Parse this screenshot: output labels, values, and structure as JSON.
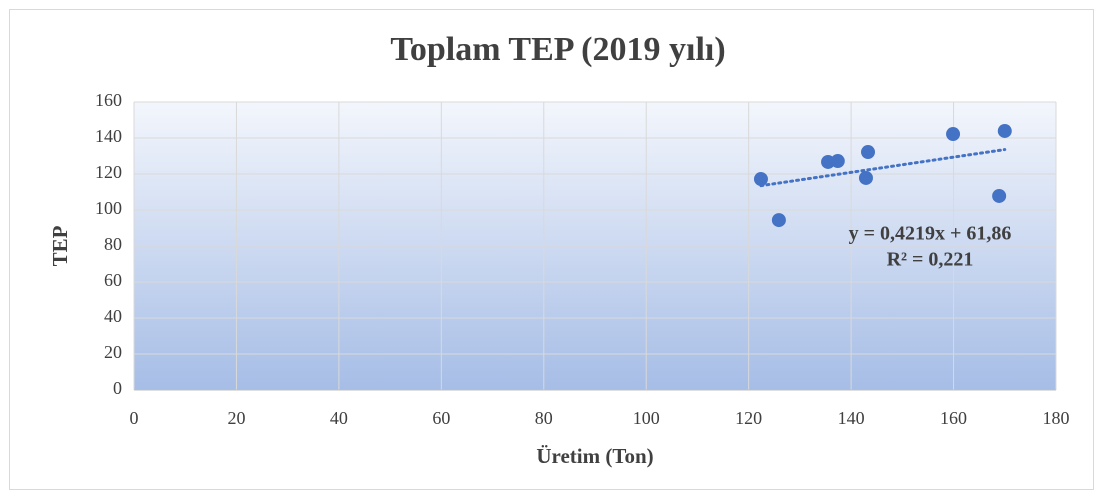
{
  "chart_data": {
    "type": "scatter",
    "title": "Toplam TEP (2019 yılı)",
    "x_label": "Üretim (Ton)",
    "y_label": "TEP",
    "series": [
      {
        "color": "#4472c4",
        "x": [
          122.4,
          125.9,
          135.5,
          137.4,
          143.3,
          142.9,
          159.9,
          170.0,
          168.9
        ],
        "values": [
          117.2,
          94.4,
          126.7,
          127.2,
          132.2,
          117.8,
          142.2,
          143.9,
          107.8
        ]
      }
    ],
    "trendline": {
      "slope": 0.4219,
      "intercept": 61.86,
      "equation": "y = 0,4219x + 61,86",
      "r2": "R² = 0,221",
      "color": "#4472c4"
    },
    "xlim": [
      0,
      180
    ],
    "xticks": [
      0,
      20,
      40,
      60,
      80,
      100,
      120,
      140,
      160,
      180
    ],
    "ylim": [
      0,
      160
    ],
    "yticks": [
      0,
      20,
      40,
      60,
      80,
      100,
      120,
      140,
      160
    ],
    "grid": true
  }
}
